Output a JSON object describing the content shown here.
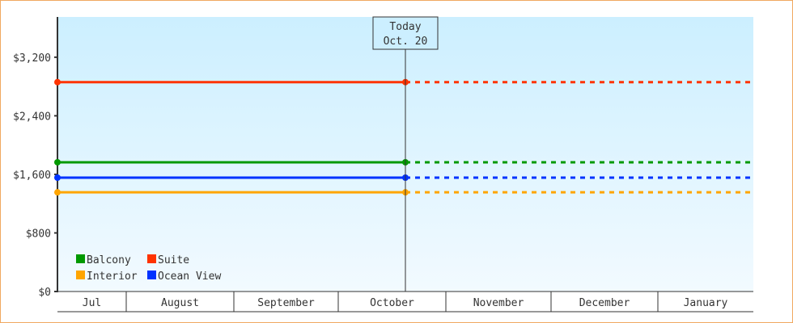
{
  "chart_data": {
    "type": "line",
    "y_axis": {
      "min": 0,
      "max": 3750,
      "ticks": [
        0,
        800,
        1600,
        2400,
        3200
      ],
      "tick_labels": [
        "$0",
        "$800",
        "$1,600",
        "$2,400",
        "$3,200"
      ]
    },
    "x_axis": {
      "categories": [
        "Jul",
        "August",
        "September",
        "October",
        "November",
        "December",
        "January"
      ]
    },
    "today_marker": {
      "line1": "Today",
      "line2": "Oct. 20"
    },
    "grid": false,
    "legend_placement": "bottom-left",
    "series": [
      {
        "name": "Balcony",
        "color": "#009900",
        "value": 1765
      },
      {
        "name": "Suite",
        "color": "#ff3300",
        "value": 2860
      },
      {
        "name": "Interior",
        "color": "#ffa500",
        "value": 1355
      },
      {
        "name": "Ocean View",
        "color": "#0033ff",
        "value": 1555
      }
    ],
    "note_style": "solid from start of Jul to Today, dotted after Today"
  }
}
